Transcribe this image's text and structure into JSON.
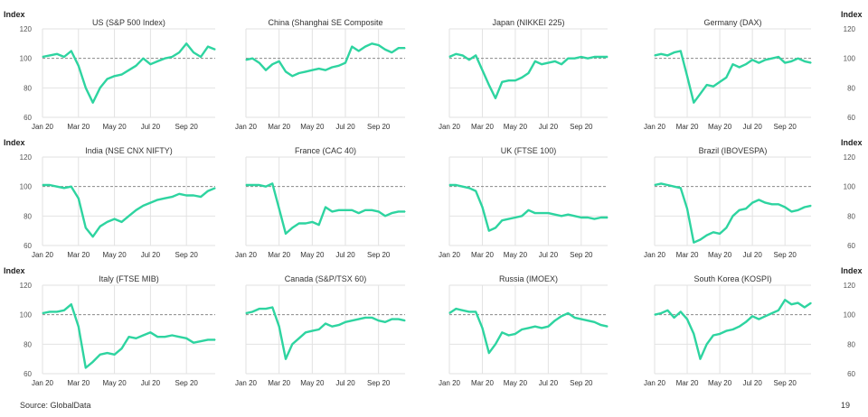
{
  "y_axis_label": "Index",
  "source": "Source: GlobalData",
  "page_number": "19",
  "colors": {
    "line": "#2ed4a0",
    "grid": "#e2e2e2",
    "baseline": "#8a8a8a"
  },
  "chart_data": [
    {
      "type": "line",
      "title": "US (S&P 500 Index)",
      "ylim": [
        60,
        120
      ],
      "yticks": [
        60,
        80,
        100,
        120
      ],
      "xlim": [
        0,
        9.6
      ],
      "xticks": [
        0,
        2,
        4,
        6,
        8
      ],
      "xtick_labels": [
        "Jan 20",
        "Mar 20",
        "May 20",
        "Jul 20",
        "Sep 20"
      ],
      "x_step_months": 0.4,
      "baseline": 100,
      "values": [
        101,
        102,
        103,
        101,
        105,
        95,
        80,
        70,
        80,
        86,
        88,
        89,
        92,
        95,
        100,
        96,
        98,
        100,
        101,
        104,
        110,
        104,
        101,
        108,
        106
      ]
    },
    {
      "type": "line",
      "title": "China (Shanghai SE Composite",
      "ylim": [
        60,
        120
      ],
      "yticks": [
        60,
        80,
        100,
        120
      ],
      "xlim": [
        0,
        9.6
      ],
      "xticks": [
        0,
        2,
        4,
        6,
        8
      ],
      "xtick_labels": [
        "Jan 20",
        "Mar 20",
        "May 20",
        "Jul 20",
        "Sep 20"
      ],
      "x_step_months": 0.4,
      "baseline": 100,
      "values": [
        99,
        100,
        97,
        92,
        96,
        98,
        91,
        88,
        90,
        91,
        92,
        93,
        92,
        94,
        95,
        97,
        108,
        105,
        108,
        110,
        109,
        106,
        104,
        107,
        107
      ]
    },
    {
      "type": "line",
      "title": "Japan (NIKKEI 225)",
      "ylim": [
        60,
        120
      ],
      "yticks": [
        60,
        80,
        100,
        120
      ],
      "xlim": [
        0,
        9.6
      ],
      "xticks": [
        0,
        2,
        4,
        6,
        8
      ],
      "xtick_labels": [
        "Jan 20",
        "Mar 20",
        "May 20",
        "Jul 20",
        "Sep 20"
      ],
      "x_step_months": 0.4,
      "baseline": 100,
      "values": [
        101,
        103,
        102,
        99,
        102,
        92,
        82,
        73,
        84,
        85,
        85,
        87,
        90,
        98,
        96,
        97,
        98,
        96,
        100,
        100,
        101,
        100,
        101,
        101,
        101
      ]
    },
    {
      "type": "line",
      "title": "Germany (DAX)",
      "ylim": [
        60,
        120
      ],
      "yticks": [
        60,
        80,
        100,
        120
      ],
      "xlim": [
        0,
        9.6
      ],
      "xticks": [
        0,
        2,
        4,
        6,
        8
      ],
      "xtick_labels": [
        "Jan 20",
        "Mar 20",
        "May 20",
        "Jul 20",
        "Sep 20"
      ],
      "x_step_months": 0.4,
      "baseline": 100,
      "values": [
        102,
        103,
        102,
        104,
        105,
        88,
        70,
        76,
        82,
        81,
        84,
        87,
        96,
        94,
        96,
        99,
        97,
        99,
        100,
        101,
        97,
        98,
        100,
        98,
        97
      ]
    },
    {
      "type": "line",
      "title": "India (NSE CNX NIFTY)",
      "ylim": [
        60,
        120
      ],
      "yticks": [
        60,
        80,
        100,
        120
      ],
      "xlim": [
        0,
        9.6
      ],
      "xticks": [
        0,
        2,
        4,
        6,
        8
      ],
      "xtick_labels": [
        "Jan 20",
        "Mar 20",
        "May 20",
        "Jul 20",
        "Sep 20"
      ],
      "x_step_months": 0.4,
      "baseline": 100,
      "values": [
        101,
        101,
        100,
        99,
        100,
        92,
        72,
        66,
        73,
        76,
        78,
        76,
        80,
        84,
        87,
        89,
        91,
        92,
        93,
        95,
        94,
        94,
        93,
        97,
        99
      ]
    },
    {
      "type": "line",
      "title": "France (CAC 40)",
      "ylim": [
        60,
        120
      ],
      "yticks": [
        60,
        80,
        100,
        120
      ],
      "xlim": [
        0,
        9.6
      ],
      "xticks": [
        0,
        2,
        4,
        6,
        8
      ],
      "xtick_labels": [
        "Jan 20",
        "Mar 20",
        "May 20",
        "Jul 20",
        "Sep 20"
      ],
      "x_step_months": 0.4,
      "baseline": 100,
      "values": [
        101,
        101,
        101,
        100,
        102,
        85,
        68,
        72,
        75,
        75,
        76,
        74,
        86,
        83,
        84,
        84,
        84,
        82,
        84,
        84,
        83,
        80,
        82,
        83,
        83
      ]
    },
    {
      "type": "line",
      "title": "UK (FTSE 100)",
      "ylim": [
        60,
        120
      ],
      "yticks": [
        60,
        80,
        100,
        120
      ],
      "xlim": [
        0,
        9.6
      ],
      "xticks": [
        0,
        2,
        4,
        6,
        8
      ],
      "xtick_labels": [
        "Jan 20",
        "Mar 20",
        "May 20",
        "Jul 20",
        "Sep 20"
      ],
      "x_step_months": 0.4,
      "baseline": 100,
      "values": [
        101,
        101,
        100,
        99,
        97,
        86,
        70,
        72,
        77,
        78,
        79,
        80,
        84,
        82,
        82,
        82,
        81,
        80,
        81,
        80,
        79,
        79,
        78,
        79,
        79
      ]
    },
    {
      "type": "line",
      "title": "Brazil (IBOVESPA)",
      "ylim": [
        60,
        120
      ],
      "yticks": [
        60,
        80,
        100,
        120
      ],
      "xlim": [
        0,
        9.6
      ],
      "xticks": [
        0,
        2,
        4,
        6,
        8
      ],
      "xtick_labels": [
        "Jan 20",
        "Mar 20",
        "May 20",
        "Jul 20",
        "Sep 20"
      ],
      "x_step_months": 0.4,
      "baseline": 100,
      "values": [
        101,
        102,
        101,
        100,
        99,
        85,
        62,
        64,
        67,
        69,
        68,
        72,
        80,
        84,
        85,
        89,
        91,
        89,
        88,
        88,
        86,
        83,
        84,
        86,
        87
      ]
    },
    {
      "type": "line",
      "title": "Italy (FTSE MIB)",
      "ylim": [
        60,
        120
      ],
      "yticks": [
        60,
        80,
        100,
        120
      ],
      "xlim": [
        0,
        9.6
      ],
      "xticks": [
        0,
        2,
        4,
        6,
        8
      ],
      "xtick_labels": [
        "Jan 20",
        "Mar 20",
        "May 20",
        "Jul 20",
        "Sep 20"
      ],
      "x_step_months": 0.4,
      "baseline": 100,
      "values": [
        101,
        102,
        102,
        103,
        107,
        92,
        64,
        68,
        73,
        74,
        73,
        77,
        85,
        84,
        86,
        88,
        85,
        85,
        86,
        85,
        84,
        81,
        82,
        83,
        83
      ]
    },
    {
      "type": "line",
      "title": "Canada (S&P/TSX 60)",
      "ylim": [
        60,
        120
      ],
      "yticks": [
        60,
        80,
        100,
        120
      ],
      "xlim": [
        0,
        9.6
      ],
      "xticks": [
        0,
        2,
        4,
        6,
        8
      ],
      "xtick_labels": [
        "Jan 20",
        "Mar 20",
        "May 20",
        "Jul 20",
        "Sep 20"
      ],
      "x_step_months": 0.4,
      "baseline": 100,
      "values": [
        101,
        102,
        104,
        104,
        105,
        92,
        70,
        80,
        84,
        88,
        89,
        90,
        94,
        92,
        93,
        95,
        96,
        97,
        98,
        98,
        96,
        95,
        97,
        97,
        96
      ]
    },
    {
      "type": "line",
      "title": "Russia (IMOEX)",
      "ylim": [
        60,
        120
      ],
      "yticks": [
        60,
        80,
        100,
        120
      ],
      "xlim": [
        0,
        9.6
      ],
      "xticks": [
        0,
        2,
        4,
        6,
        8
      ],
      "xtick_labels": [
        "Jan 20",
        "Mar 20",
        "May 20",
        "Jul 20",
        "Sep 20"
      ],
      "x_step_months": 0.4,
      "baseline": 100,
      "values": [
        101,
        104,
        103,
        102,
        102,
        91,
        74,
        80,
        88,
        86,
        87,
        90,
        91,
        92,
        91,
        92,
        96,
        99,
        101,
        98,
        97,
        96,
        95,
        93,
        92
      ]
    },
    {
      "type": "line",
      "title": "South Korea (KOSPI)",
      "ylim": [
        60,
        120
      ],
      "yticks": [
        60,
        80,
        100,
        120
      ],
      "xlim": [
        0,
        9.6
      ],
      "xticks": [
        0,
        2,
        4,
        6,
        8
      ],
      "xtick_labels": [
        "Jan 20",
        "Mar 20",
        "May 20",
        "Jul 20",
        "Sep 20"
      ],
      "x_step_months": 0.4,
      "baseline": 100,
      "values": [
        100,
        101,
        103,
        98,
        102,
        97,
        87,
        70,
        80,
        86,
        87,
        89,
        90,
        92,
        95,
        99,
        97,
        99,
        101,
        103,
        110,
        107,
        108,
        105,
        108
      ]
    }
  ]
}
